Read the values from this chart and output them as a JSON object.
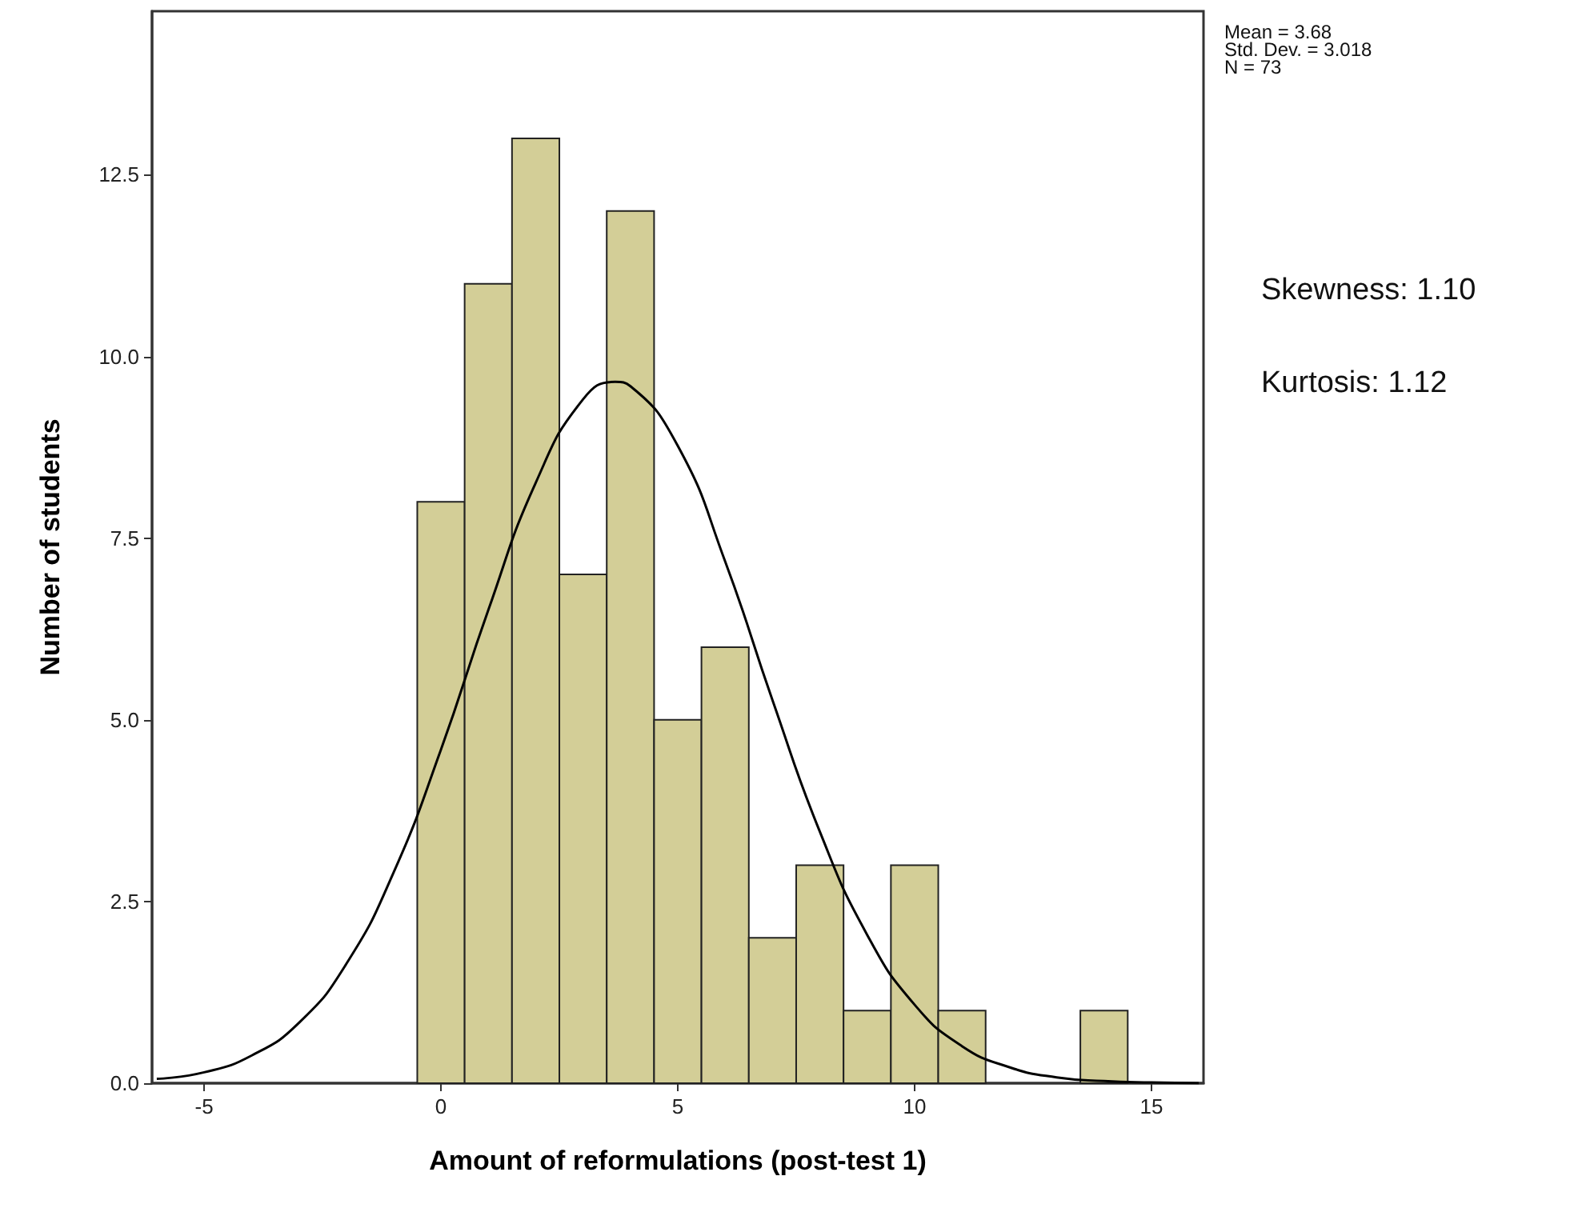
{
  "chart_data": {
    "type": "histogram",
    "xlabel": "Amount of reformulations (post-test 1)",
    "ylabel": "Number of students",
    "bins": [
      -0.5,
      0.5,
      1.5,
      2.5,
      3.5,
      4.5,
      5.5,
      6.5,
      7.5,
      8.5,
      9.5,
      10.5,
      11.5,
      12.5,
      13.5,
      14.5
    ],
    "values": [
      8,
      11,
      13,
      7,
      12,
      5,
      6,
      2,
      3,
      1,
      3,
      1,
      0,
      0,
      1
    ],
    "color": "#d3ce97",
    "series": [
      {
        "type": "line",
        "color": "#000000",
        "x": [
          -6,
          -5,
          -4,
          -3,
          -2,
          -1,
          0,
          1,
          2,
          3,
          3.68,
          4,
          5,
          6,
          7,
          8,
          9,
          10,
          11,
          12,
          13,
          14,
          15,
          16
        ],
        "values": [
          0.06,
          0.15,
          0.38,
          0.83,
          1.64,
          2.9,
          4.59,
          6.51,
          8.26,
          9.41,
          9.65,
          9.59,
          8.77,
          7.18,
          5.27,
          3.46,
          2.04,
          1.08,
          0.51,
          0.22,
          0.08,
          0.03,
          0.01,
          0
        ]
      }
    ],
    "xlim": [
      -6.1,
      16.1
    ],
    "xticks": [
      -5,
      0,
      5,
      10,
      15
    ],
    "ylim": [
      0,
      14.75
    ],
    "yticks": [
      {
        "value": 0,
        "label": "0.0"
      },
      {
        "value": 2.5,
        "label": "2.5"
      },
      {
        "value": 5,
        "label": "5.0"
      },
      {
        "value": 7.5,
        "label": "7.5"
      },
      {
        "value": 10,
        "label": "10.0"
      },
      {
        "value": 12.5,
        "label": "12.5"
      }
    ],
    "grid": false,
    "annotations": [
      "Mean = 3.68",
      "Std. Dev. = 3.018",
      "N = 73",
      "Skewness: 1.10",
      "Kurtosis: 1.12"
    ]
  }
}
